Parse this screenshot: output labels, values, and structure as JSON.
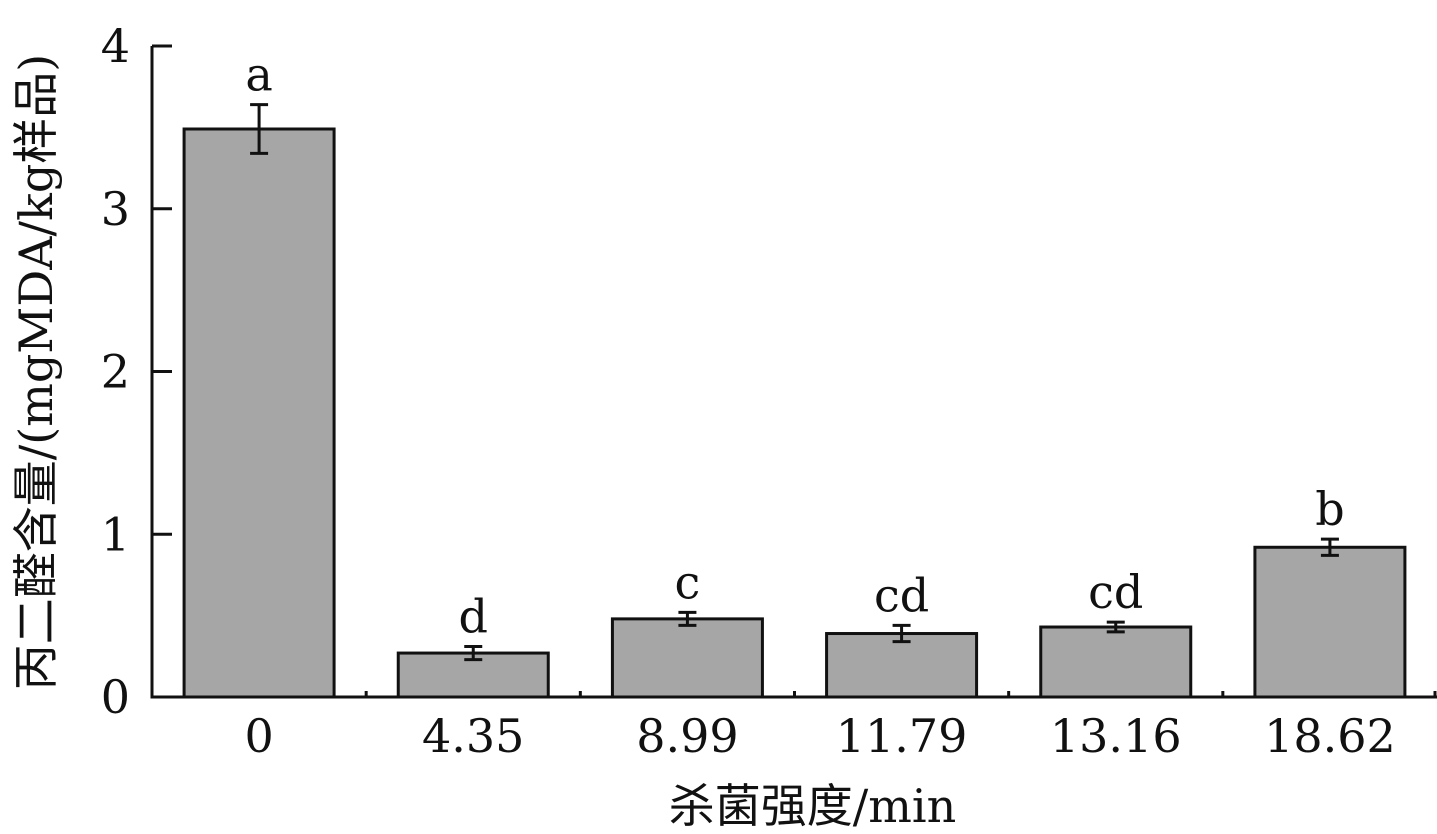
{
  "chart_data": {
    "type": "bar",
    "xlabel": "杀菌强度/min",
    "ylabel": "丙二醛含量/(mgMDA/kg样品)",
    "categories": [
      "0",
      "4.35",
      "8.99",
      "11.79",
      "13.16",
      "18.62"
    ],
    "values": [
      3.49,
      0.27,
      0.48,
      0.39,
      0.43,
      0.92
    ],
    "errors": [
      0.15,
      0.04,
      0.04,
      0.05,
      0.03,
      0.05
    ],
    "significance_labels": [
      "a",
      "d",
      "c",
      "cd",
      "cd",
      "b"
    ],
    "ylim": [
      0,
      4
    ],
    "yticks": [
      "0",
      "1",
      "2",
      "3",
      "4"
    ],
    "grid": false,
    "legend": "none",
    "bar_color": "#a6a6a6",
    "edge_color": "#111111"
  }
}
